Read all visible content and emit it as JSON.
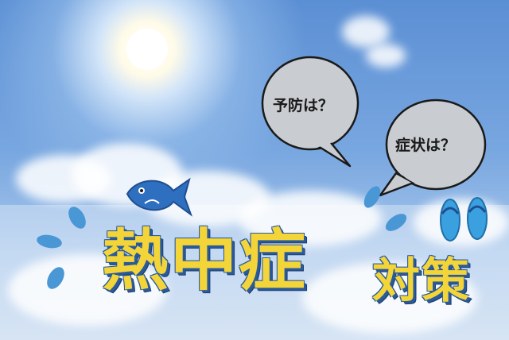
{
  "bubbles": [
    {
      "text": "予防は？"
    },
    {
      "text": "症状は？"
    }
  ],
  "title": {
    "main": "熱中症",
    "sub": "対策"
  },
  "icons": [
    "sun-icon",
    "fish-icon",
    "sandals-icon",
    "sweat-drop-icon"
  ],
  "colors": {
    "title_fill": "#f3d53a",
    "title_outline": "#2a5a9a",
    "fish": "#2f6fc0",
    "sandals": "#3aa0e0",
    "bubble_fill": "#c9cdd1"
  }
}
